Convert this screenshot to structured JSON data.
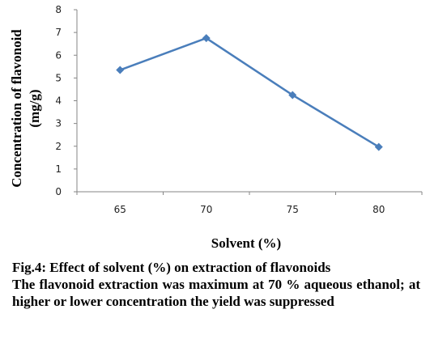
{
  "chart_data": {
    "type": "line",
    "categories": [
      "65",
      "70",
      "75",
      "80"
    ],
    "series": [
      {
        "values": [
          5.35,
          6.75,
          4.25,
          1.97
        ],
        "color": "#4a7ebb",
        "marker": "diamond"
      }
    ],
    "ylim": [
      0,
      8
    ],
    "yticks": [
      0,
      1,
      2,
      3,
      4,
      5,
      6,
      7,
      8
    ],
    "ylabel_line1": "Concentration of flavonoid",
    "ylabel_line2": "(mg/g)",
    "xlabel": "Solvent (%)",
    "grid": false,
    "legend": "none"
  },
  "caption": {
    "title": "Fig.4: Effect of solvent (%) on extraction of flavonoids",
    "body": "The flavonoid extraction was maximum at 70 % aqueous ethanol; at higher or lower concentration the yield was suppressed"
  }
}
